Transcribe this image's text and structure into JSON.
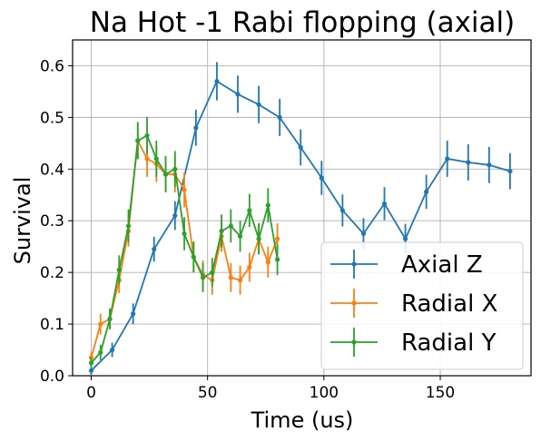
{
  "chart_data": {
    "type": "line",
    "title": "Na Hot -1 Rabi flopping (axial)",
    "xlabel": "Time (us)",
    "ylabel": "Survival",
    "xlim": [
      -8,
      189
    ],
    "ylim": [
      0,
      0.65
    ],
    "xticks": [
      0,
      50,
      100,
      150
    ],
    "yticks": [
      0.0,
      0.1,
      0.2,
      0.3,
      0.4,
      0.5,
      0.6
    ],
    "xtick_labels": [
      "0",
      "50",
      "100",
      "150"
    ],
    "ytick_labels": [
      "0.0",
      "0.1",
      "0.2",
      "0.3",
      "0.4",
      "0.5",
      "0.6"
    ],
    "grid": true,
    "legend_position": "lower-right",
    "series": [
      {
        "name": "Axial Z",
        "color": "#1f77b4",
        "x": [
          0,
          9,
          18,
          27,
          36,
          45,
          54,
          63,
          72,
          81,
          90,
          99,
          108,
          117,
          126,
          135,
          144,
          153,
          162,
          171,
          180
        ],
        "y": [
          0.01,
          0.05,
          0.12,
          0.245,
          0.31,
          0.48,
          0.57,
          0.545,
          0.525,
          0.5,
          0.442,
          0.383,
          0.32,
          0.275,
          0.333,
          0.265,
          0.356,
          0.42,
          0.413,
          0.408,
          0.396
        ],
        "err": [
          0.008,
          0.014,
          0.02,
          0.024,
          0.028,
          0.035,
          0.037,
          0.036,
          0.036,
          0.036,
          0.035,
          0.033,
          0.031,
          0.03,
          0.032,
          0.029,
          0.033,
          0.035,
          0.035,
          0.035,
          0.035
        ]
      },
      {
        "name": "Radial X",
        "color": "#ff7f0e",
        "x": [
          0,
          4,
          8,
          12,
          16,
          20,
          24,
          28,
          32,
          36,
          40,
          44,
          48,
          52,
          56,
          60,
          64,
          68,
          72,
          76,
          80
        ],
        "y": [
          0.035,
          0.1,
          0.11,
          0.185,
          0.28,
          0.455,
          0.42,
          0.41,
          0.39,
          0.39,
          0.36,
          0.23,
          0.195,
          0.185,
          0.27,
          0.19,
          0.185,
          0.21,
          0.265,
          0.22,
          0.265
        ],
        "err": [
          0.01,
          0.02,
          0.02,
          0.025,
          0.03,
          0.035,
          0.035,
          0.035,
          0.035,
          0.035,
          0.034,
          0.03,
          0.028,
          0.028,
          0.03,
          0.028,
          0.028,
          0.028,
          0.03,
          0.03,
          0.03
        ]
      },
      {
        "name": "Radial Y",
        "color": "#2ca02c",
        "x": [
          0,
          4,
          8,
          12,
          16,
          20,
          24,
          28,
          32,
          36,
          40,
          44,
          48,
          52,
          56,
          60,
          64,
          68,
          72,
          76,
          80
        ],
        "y": [
          0.025,
          0.045,
          0.11,
          0.205,
          0.29,
          0.455,
          0.465,
          0.42,
          0.39,
          0.4,
          0.275,
          0.23,
          0.19,
          0.2,
          0.28,
          0.29,
          0.27,
          0.32,
          0.265,
          0.33,
          0.225
        ],
        "err": [
          0.01,
          0.015,
          0.02,
          0.028,
          0.032,
          0.036,
          0.036,
          0.035,
          0.035,
          0.035,
          0.032,
          0.03,
          0.028,
          0.028,
          0.032,
          0.032,
          0.03,
          0.032,
          0.03,
          0.033,
          0.03
        ]
      }
    ]
  }
}
